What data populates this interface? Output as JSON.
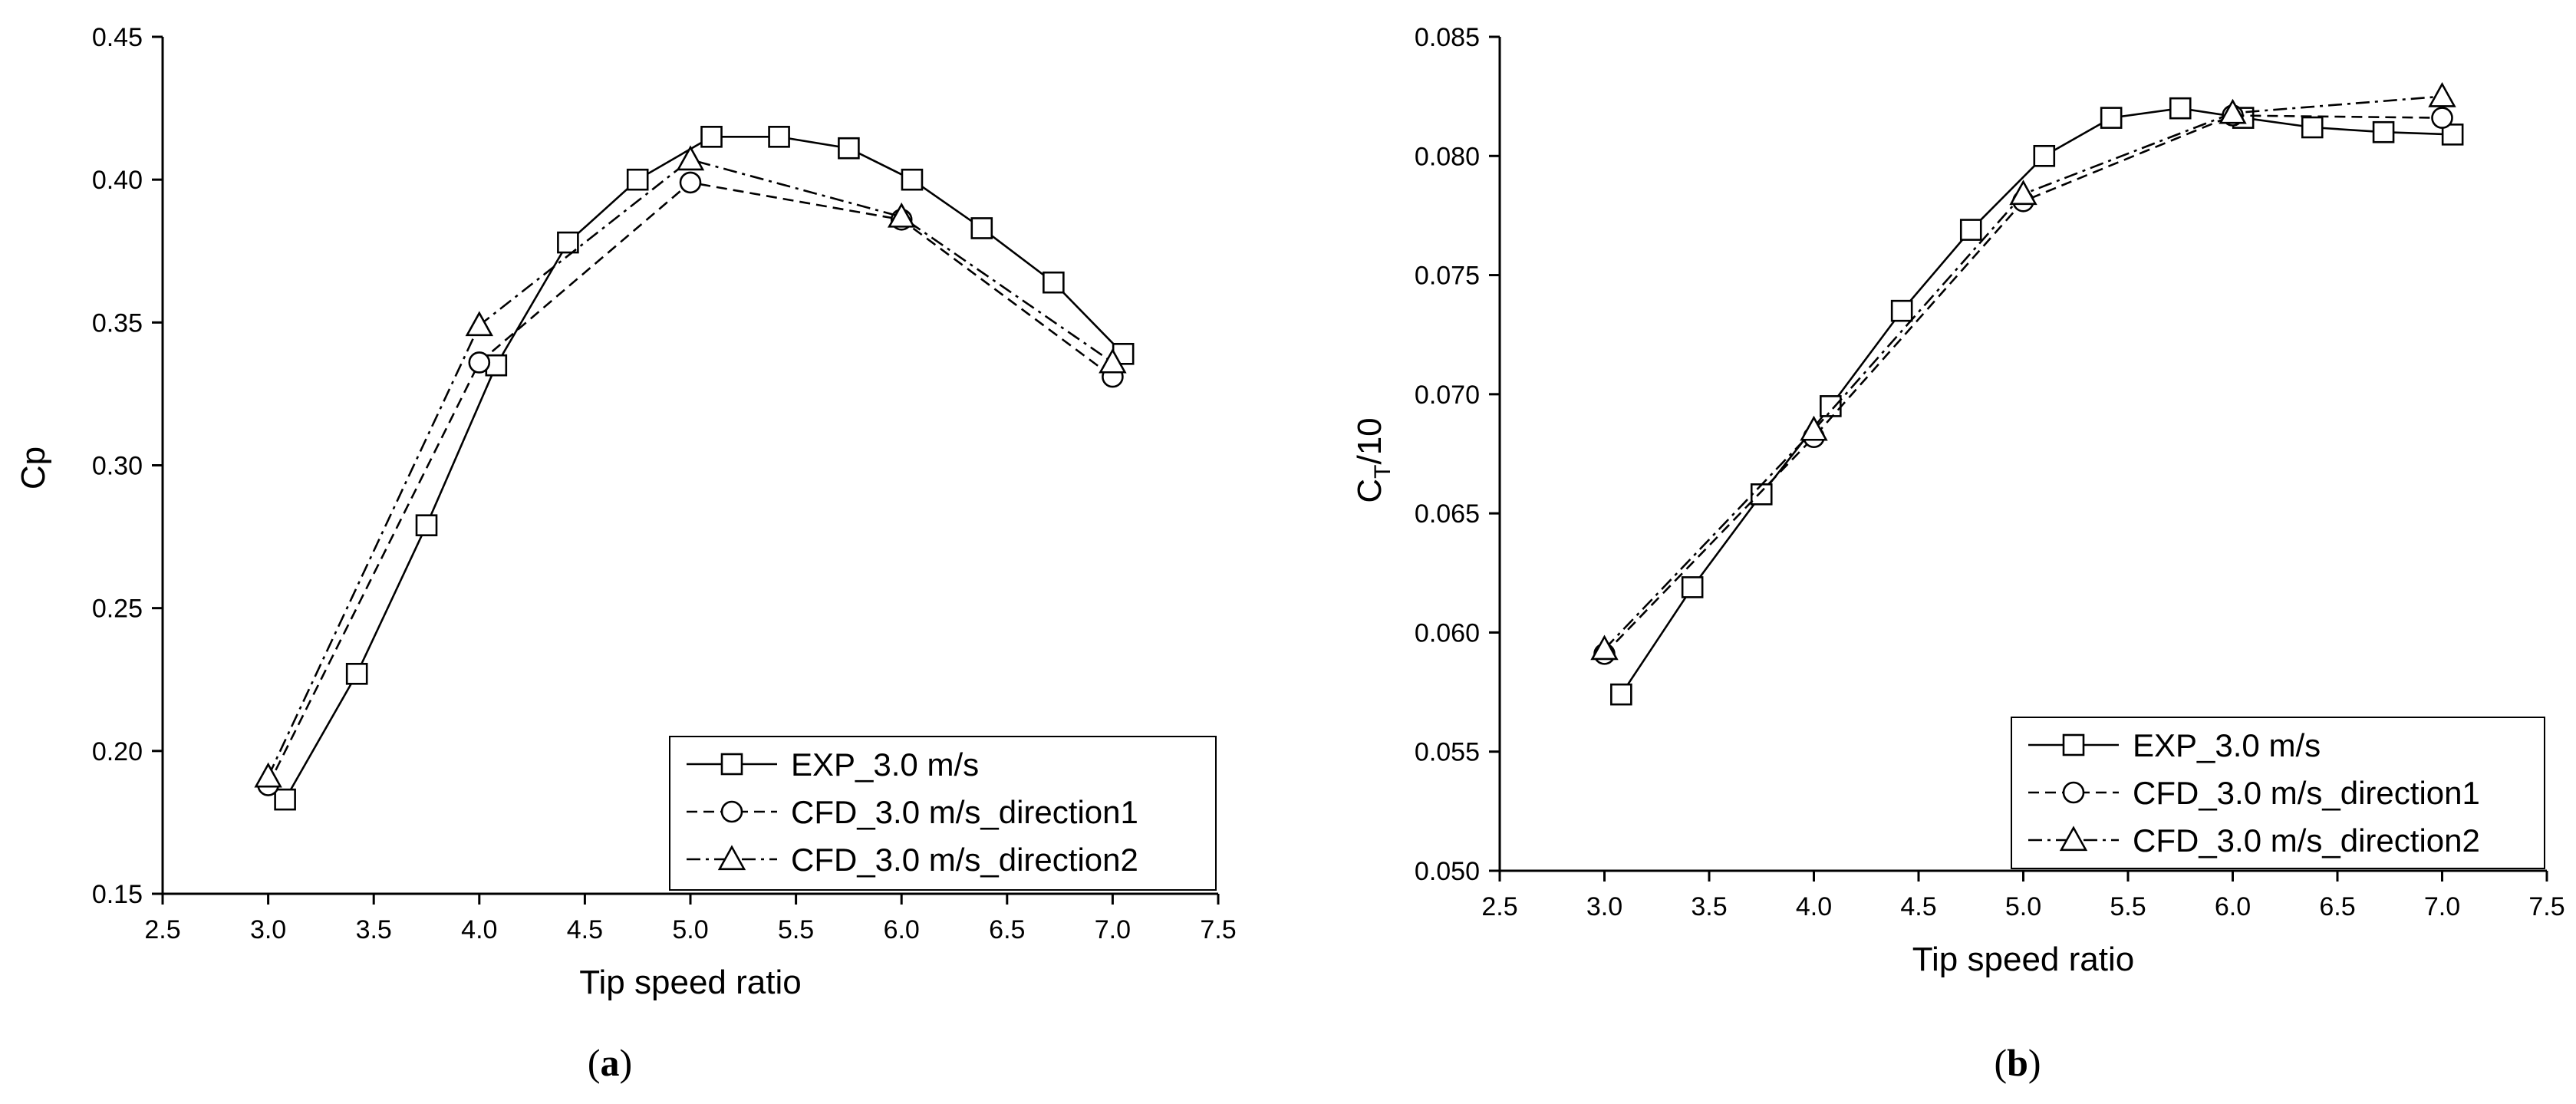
{
  "chart_data": [
    {
      "type": "line",
      "panel_label": "a",
      "title": "",
      "xlabel": "Tip speed ratio",
      "ylabel": "Cp",
      "ylabel_sub": "",
      "ylabel_suffix": "",
      "xlim": [
        2.5,
        7.5
      ],
      "ylim": [
        0.15,
        0.45
      ],
      "xticks": [
        "2.5",
        "3.0",
        "3.5",
        "4.0",
        "4.5",
        "5.0",
        "5.5",
        "6.0",
        "6.5",
        "7.0",
        "7.5"
      ],
      "yticks": [
        "0.15",
        "0.20",
        "0.25",
        "0.30",
        "0.35",
        "0.40",
        "0.45"
      ],
      "grid": false,
      "legend_position": "bottom-right",
      "series": [
        {
          "name": "EXP_3.0 m/s",
          "line_style": "solid",
          "marker": "square",
          "x": [
            3.08,
            3.42,
            3.75,
            4.08,
            4.42,
            4.75,
            5.1,
            5.42,
            5.75,
            6.05,
            6.38,
            6.72,
            7.05
          ],
          "y": [
            0.183,
            0.227,
            0.279,
            0.335,
            0.378,
            0.4,
            0.415,
            0.415,
            0.411,
            0.4,
            0.383,
            0.364,
            0.339
          ]
        },
        {
          "name": "CFD_3.0 m/s_direction1",
          "line_style": "dashed",
          "marker": "circle",
          "x": [
            3.0,
            4.0,
            5.0,
            6.0,
            7.0
          ],
          "y": [
            0.188,
            0.336,
            0.399,
            0.386,
            0.331
          ]
        },
        {
          "name": "CFD_3.0 m/s_direction2",
          "line_style": "dashdot",
          "marker": "triangle",
          "x": [
            3.0,
            4.0,
            5.0,
            6.0,
            7.0
          ],
          "y": [
            0.191,
            0.349,
            0.407,
            0.387,
            0.336
          ]
        }
      ]
    },
    {
      "type": "line",
      "panel_label": "b",
      "title": "",
      "xlabel": "Tip speed ratio",
      "ylabel": "C",
      "ylabel_sub": "T",
      "ylabel_suffix": "/10",
      "xlim": [
        2.5,
        7.5
      ],
      "ylim": [
        0.05,
        0.085
      ],
      "xticks": [
        "2.5",
        "3.0",
        "3.5",
        "4.0",
        "4.5",
        "5.0",
        "5.5",
        "6.0",
        "6.5",
        "7.0",
        "7.5"
      ],
      "yticks": [
        "0.050",
        "0.055",
        "0.060",
        "0.065",
        "0.070",
        "0.075",
        "0.080",
        "0.085"
      ],
      "grid": false,
      "legend_position": "bottom-right",
      "series": [
        {
          "name": "EXP_3.0 m/s",
          "line_style": "solid",
          "marker": "square",
          "x": [
            3.08,
            3.42,
            3.75,
            4.08,
            4.42,
            4.75,
            5.1,
            5.42,
            5.75,
            6.05,
            6.38,
            6.72,
            7.05
          ],
          "y": [
            0.0574,
            0.0619,
            0.0658,
            0.0695,
            0.0735,
            0.0769,
            0.08,
            0.0816,
            0.082,
            0.0816,
            0.0812,
            0.081,
            0.0809
          ]
        },
        {
          "name": "CFD_3.0 m/s_direction1",
          "line_style": "dashed",
          "marker": "circle",
          "x": [
            3.0,
            4.0,
            5.0,
            6.0,
            7.0
          ],
          "y": [
            0.0591,
            0.0682,
            0.0781,
            0.0817,
            0.0816
          ]
        },
        {
          "name": "CFD_3.0 m/s_direction2",
          "line_style": "dashdot",
          "marker": "triangle",
          "x": [
            3.0,
            4.0,
            5.0,
            6.0,
            7.0
          ],
          "y": [
            0.0593,
            0.0685,
            0.0784,
            0.0818,
            0.0825
          ]
        }
      ]
    }
  ]
}
